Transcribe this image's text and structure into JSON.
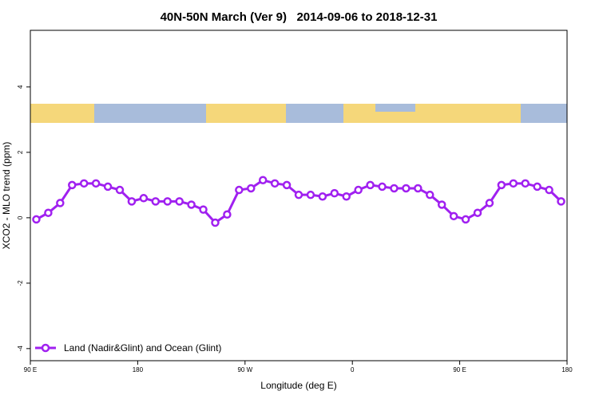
{
  "chart_data": {
    "type": "line",
    "title": "40N-50N March (Ver 9)   2014-09-06 to 2018-12-31",
    "x_label": "Longitude (deg E)",
    "y_label": "XCO2 - MLO trend (ppm)",
    "x": [
      95,
      105,
      115,
      125,
      135,
      145,
      155,
      165,
      175,
      185,
      195,
      205,
      215,
      225,
      235,
      245,
      255,
      265,
      275,
      285,
      295,
      305,
      315,
      325,
      335,
      345,
      355,
      365,
      375,
      385,
      395,
      405,
      415,
      425,
      435,
      445,
      455,
      465,
      475,
      485,
      495,
      505,
      515,
      525,
      535
    ],
    "series": [
      {
        "name": "Land (Nadir&Glint) and Ocean (Glint)",
        "color": "#a020f0",
        "values": [
          -0.05,
          0.15,
          0.45,
          1.0,
          1.05,
          1.05,
          0.95,
          0.85,
          0.5,
          0.6,
          0.5,
          0.5,
          0.5,
          0.4,
          0.25,
          -0.15,
          0.1,
          0.85,
          0.9,
          1.15,
          1.05,
          1.0,
          0.7,
          0.7,
          0.65,
          0.75,
          0.65,
          0.85,
          1.0,
          0.95,
          0.9,
          0.9,
          0.9,
          0.7,
          0.4,
          0.05,
          -0.05,
          0.15,
          0.45,
          1.0,
          1.05,
          1.05,
          0.95,
          0.85,
          0.5
        ]
      }
    ],
    "xlim": [
      90,
      540
    ],
    "xticks": [
      {
        "value": 90,
        "label": "90 E"
      },
      180,
      {
        "value": 270,
        "label": "90 W"
      },
      0,
      {
        "value": 450,
        "label": "90 E"
      },
      {
        "value": 540,
        "label": "180"
      }
    ],
    "ylim": [
      -4.37,
      5.73
    ],
    "yticks": [
      -4,
      -2,
      0,
      2,
      4
    ],
    "legend": "bottom-left"
  }
}
